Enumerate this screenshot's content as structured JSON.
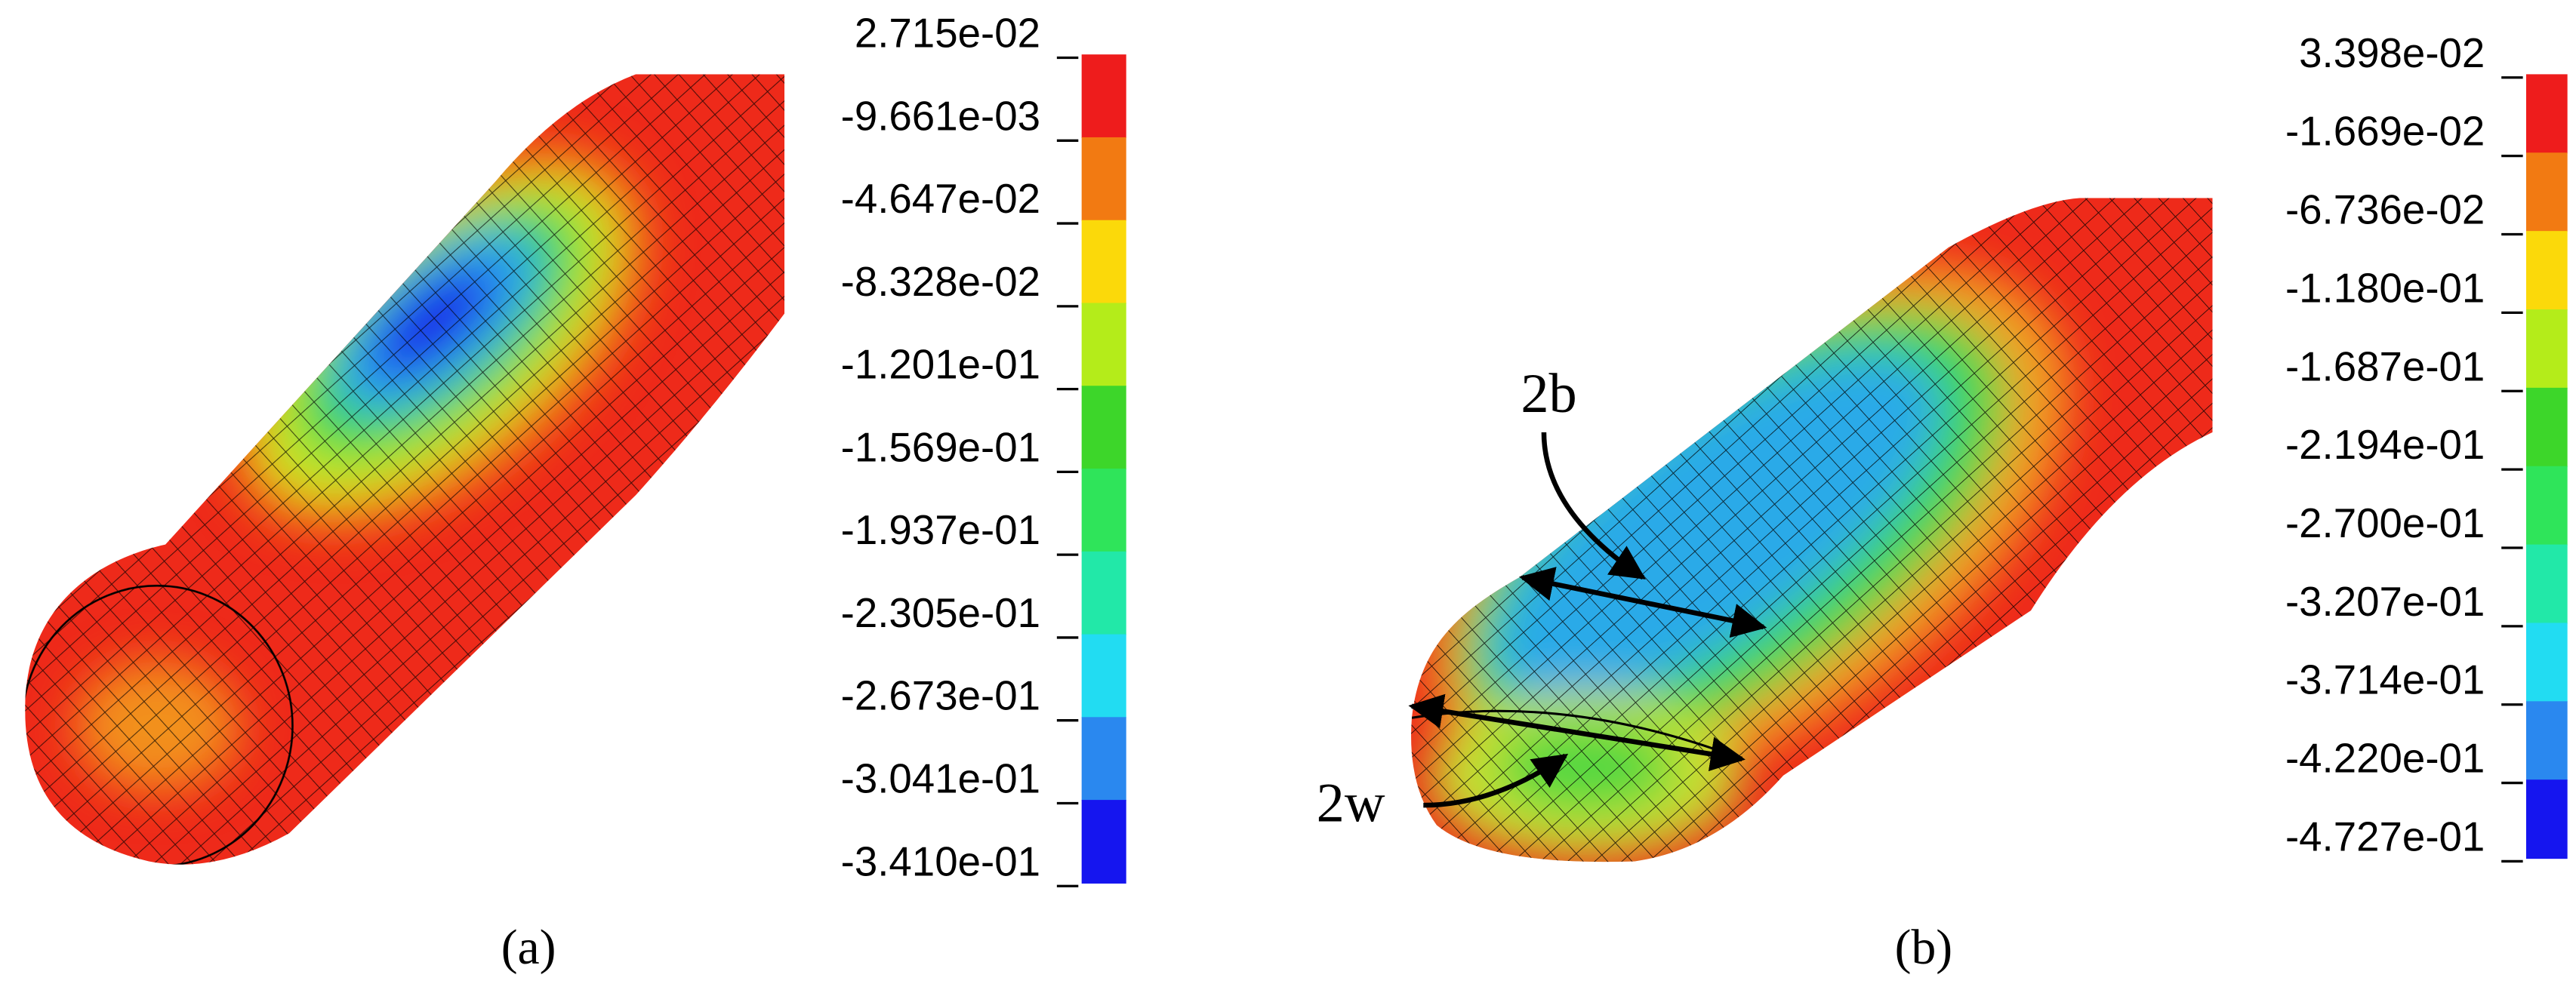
{
  "panels": [
    {
      "caption": "(a)",
      "legend": {
        "labels": [
          "2.715e-02",
          "-9.661e-03",
          "-4.647e-02",
          "-8.328e-02",
          "-1.201e-01",
          "-1.569e-01",
          "-1.937e-01",
          "-2.305e-01",
          "-2.673e-01",
          "-3.041e-01",
          "-3.410e-01"
        ],
        "colors": [
          "#ee1c1c",
          "#f27a12",
          "#fbd90a",
          "#b4ec1a",
          "#3dd62a",
          "#2fe45a",
          "#22e8a8",
          "#22dcf2",
          "#2a88ef",
          "#1515ef"
        ]
      }
    },
    {
      "caption": "(b)",
      "legend": {
        "labels": [
          "3.398e-02",
          "-1.669e-02",
          "-6.736e-02",
          "-1.180e-01",
          "-1.687e-01",
          "-2.194e-01",
          "-2.700e-01",
          "-3.207e-01",
          "-3.714e-01",
          "-4.220e-01",
          "-4.727e-01"
        ],
        "colors": [
          "#ee1c1c",
          "#f27a12",
          "#fbd90a",
          "#b4ec1a",
          "#3dd62a",
          "#2fe45a",
          "#22e8a8",
          "#22dcf2",
          "#2a88ef",
          "#1515ef"
        ]
      }
    }
  ],
  "annotations": [
    "2b",
    "2w"
  ]
}
